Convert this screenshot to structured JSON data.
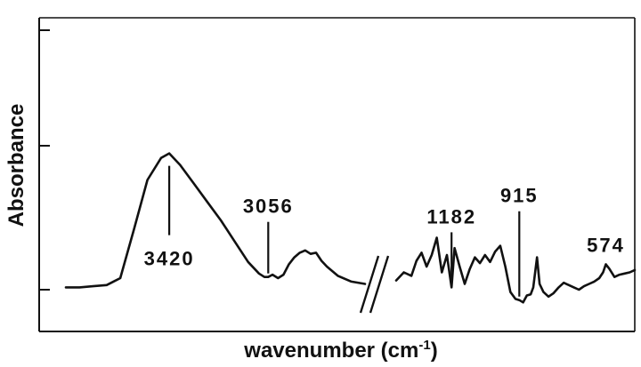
{
  "chart_data": {
    "type": "line",
    "title": "",
    "xlabel": "wavenumber (cm",
    "xlabel_sup": "-1",
    "xlabel_close": ")",
    "ylabel": "Absorbance",
    "x_axis_break": true,
    "grid": false,
    "x_reversed": true,
    "series": [
      {
        "segment": "high",
        "x": [
          3800,
          3750,
          3700,
          3650,
          3600,
          3550,
          3500,
          3450,
          3420,
          3380,
          3330,
          3280,
          3230,
          3180,
          3130,
          3090,
          3070,
          3056,
          3040,
          3020,
          3000,
          2980,
          2960,
          2940,
          2920,
          2900,
          2880,
          2860,
          2840,
          2800,
          2750,
          2700
        ],
        "y": [
          0.02,
          0.02,
          0.03,
          0.04,
          0.1,
          0.52,
          0.95,
          1.14,
          1.18,
          1.08,
          0.92,
          0.76,
          0.6,
          0.42,
          0.24,
          0.14,
          0.11,
          0.11,
          0.13,
          0.1,
          0.13,
          0.22,
          0.28,
          0.32,
          0.34,
          0.31,
          0.32,
          0.25,
          0.2,
          0.12,
          0.07,
          0.05
        ]
      },
      {
        "segment": "low",
        "x": [
          1400,
          1370,
          1340,
          1320,
          1300,
          1280,
          1260,
          1240,
          1220,
          1200,
          1182,
          1170,
          1150,
          1130,
          1110,
          1090,
          1070,
          1050,
          1030,
          1010,
          990,
          970,
          950,
          930,
          915,
          900,
          885,
          870,
          860,
          845,
          835,
          820,
          800,
          780,
          760,
          740,
          720,
          700,
          680,
          660,
          640,
          620,
          600,
          585,
          574,
          560,
          540,
          520,
          500,
          480,
          460
        ],
        "y": [
          0.08,
          0.15,
          0.12,
          0.25,
          0.32,
          0.2,
          0.3,
          0.45,
          0.15,
          0.3,
          0.02,
          0.36,
          0.2,
          0.05,
          0.18,
          0.28,
          0.23,
          0.3,
          0.24,
          0.33,
          0.38,
          0.2,
          -0.02,
          -0.08,
          -0.09,
          -0.11,
          -0.05,
          -0.04,
          0.02,
          0.28,
          0.05,
          -0.02,
          -0.06,
          -0.03,
          0.02,
          0.06,
          0.04,
          0.02,
          0.0,
          0.03,
          0.05,
          0.07,
          0.1,
          0.15,
          0.22,
          0.18,
          0.11,
          0.13,
          0.14,
          0.15,
          0.17
        ]
      }
    ],
    "annotations": [
      {
        "text": "3420",
        "x": 3420,
        "label_position": "below"
      },
      {
        "text": "3056",
        "x": 3056,
        "label_position": "above"
      },
      {
        "text": "1182",
        "x": 1182,
        "label_position": "above"
      },
      {
        "text": "915",
        "x": 915,
        "label_position": "above"
      },
      {
        "text": "574",
        "x": 574,
        "label_position": "above"
      }
    ]
  }
}
